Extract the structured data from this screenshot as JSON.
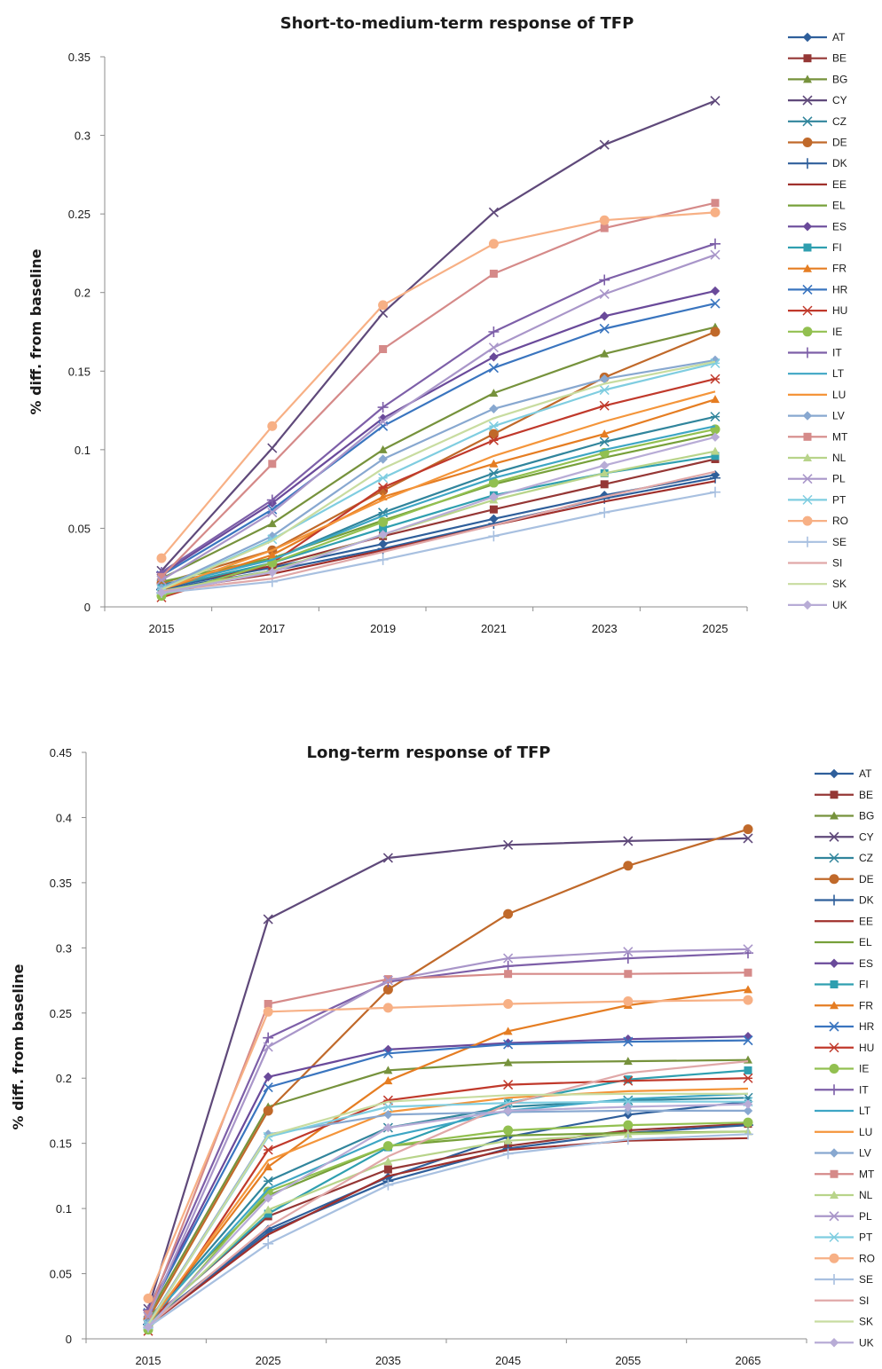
{
  "chart_data": [
    {
      "type": "line",
      "title": "Short-to-medium-term response of TFP",
      "xlabel": "",
      "ylabel": "% diff. from baseline",
      "x": [
        "2015",
        "2017",
        "2019",
        "2021",
        "2023",
        "2025"
      ],
      "ylim": [
        0,
        0.35
      ],
      "yticks": [
        "0",
        "0.05",
        "0.1",
        "0.15",
        "0.2",
        "0.25",
        "0.3",
        "0.35"
      ],
      "grid": false,
      "legend_position": "right",
      "series": [
        {
          "name": "AT",
          "color": "#2f5f9b",
          "marker": "diamond",
          "values": [
            0.012,
            0.025,
            0.04,
            0.056,
            0.071,
            0.084
          ]
        },
        {
          "name": "BE",
          "color": "#953735",
          "marker": "square",
          "values": [
            0.013,
            0.026,
            0.045,
            0.062,
            0.078,
            0.094
          ]
        },
        {
          "name": "BG",
          "color": "#76923c",
          "marker": "triangle",
          "values": [
            0.018,
            0.053,
            0.1,
            0.136,
            0.161,
            0.178
          ]
        },
        {
          "name": "CY",
          "color": "#5f497a",
          "marker": "x",
          "values": [
            0.023,
            0.101,
            0.187,
            0.251,
            0.294,
            0.322
          ]
        },
        {
          "name": "CZ",
          "color": "#31859c",
          "marker": "star",
          "values": [
            0.014,
            0.03,
            0.06,
            0.085,
            0.105,
            0.121
          ]
        },
        {
          "name": "DE",
          "color": "#c0692a",
          "marker": "circle",
          "values": [
            0.015,
            0.036,
            0.074,
            0.11,
            0.146,
            0.175
          ]
        },
        {
          "name": "DK",
          "color": "#2f5f9b",
          "marker": "plus",
          "values": [
            0.011,
            0.023,
            0.037,
            0.053,
            0.069,
            0.082
          ]
        },
        {
          "name": "EE",
          "color": "#a0302c",
          "marker": "none",
          "values": [
            0.01,
            0.021,
            0.036,
            0.052,
            0.067,
            0.08
          ]
        },
        {
          "name": "EL",
          "color": "#77a03a",
          "marker": "none",
          "values": [
            0.016,
            0.031,
            0.055,
            0.078,
            0.095,
            0.11
          ]
        },
        {
          "name": "ES",
          "color": "#6a4a9a",
          "marker": "diamond",
          "values": [
            0.021,
            0.066,
            0.12,
            0.159,
            0.185,
            0.201
          ]
        },
        {
          "name": "FI",
          "color": "#2f9fb0",
          "marker": "square",
          "values": [
            0.012,
            0.028,
            0.05,
            0.071,
            0.085,
            0.096
          ]
        },
        {
          "name": "FR",
          "color": "#e57d22",
          "marker": "triangle",
          "values": [
            0.011,
            0.033,
            0.07,
            0.091,
            0.11,
            0.132
          ]
        },
        {
          "name": "HR",
          "color": "#3a75bf",
          "marker": "x",
          "values": [
            0.02,
            0.062,
            0.115,
            0.152,
            0.177,
            0.193
          ]
        },
        {
          "name": "HU",
          "color": "#c0392b",
          "marker": "star",
          "values": [
            0.006,
            0.028,
            0.076,
            0.106,
            0.128,
            0.145
          ]
        },
        {
          "name": "IE",
          "color": "#92c050",
          "marker": "circle",
          "values": [
            0.007,
            0.028,
            0.054,
            0.079,
            0.098,
            0.113
          ]
        },
        {
          "name": "IT",
          "color": "#7d5fa8",
          "marker": "plus",
          "values": [
            0.022,
            0.068,
            0.127,
            0.175,
            0.208,
            0.231
          ]
        },
        {
          "name": "LT",
          "color": "#3ea6c4",
          "marker": "none",
          "values": [
            0.013,
            0.03,
            0.058,
            0.082,
            0.1,
            0.115
          ]
        },
        {
          "name": "LU",
          "color": "#f4953a",
          "marker": "none",
          "values": [
            0.011,
            0.036,
            0.068,
            0.096,
            0.118,
            0.137
          ]
        },
        {
          "name": "LV",
          "color": "#88a8d0",
          "marker": "diamond",
          "values": [
            0.012,
            0.045,
            0.094,
            0.126,
            0.145,
            0.157
          ]
        },
        {
          "name": "MT",
          "color": "#d58a89",
          "marker": "square",
          "values": [
            0.019,
            0.091,
            0.164,
            0.212,
            0.241,
            0.257
          ]
        },
        {
          "name": "NL",
          "color": "#b8d48a",
          "marker": "triangle",
          "values": [
            0.01,
            0.023,
            0.046,
            0.068,
            0.085,
            0.099
          ]
        },
        {
          "name": "PL",
          "color": "#a996c9",
          "marker": "x",
          "values": [
            0.017,
            0.06,
            0.118,
            0.165,
            0.199,
            0.224
          ]
        },
        {
          "name": "PT",
          "color": "#7fcde0",
          "marker": "star",
          "values": [
            0.011,
            0.043,
            0.082,
            0.115,
            0.138,
            0.155
          ]
        },
        {
          "name": "RO",
          "color": "#f7b085",
          "marker": "circle",
          "values": [
            0.031,
            0.115,
            0.192,
            0.231,
            0.246,
            0.251
          ]
        },
        {
          "name": "SE",
          "color": "#a8c0e0",
          "marker": "plus",
          "values": [
            0.009,
            0.016,
            0.03,
            0.045,
            0.06,
            0.073
          ]
        },
        {
          "name": "SI",
          "color": "#e0a8a8",
          "marker": "none",
          "values": [
            0.01,
            0.018,
            0.035,
            0.052,
            0.07,
            0.086
          ]
        },
        {
          "name": "SK",
          "color": "#c8dca0",
          "marker": "none",
          "values": [
            0.011,
            0.042,
            0.088,
            0.12,
            0.142,
            0.156
          ]
        },
        {
          "name": "UK",
          "color": "#b8acd6",
          "marker": "diamond",
          "values": [
            0.009,
            0.022,
            0.046,
            0.07,
            0.09,
            0.108
          ]
        }
      ]
    },
    {
      "type": "line",
      "title": "Long-term response of TFP",
      "xlabel": "",
      "ylabel": "% diff. from baseline",
      "x": [
        "2015",
        "2025",
        "2035",
        "2045",
        "2055",
        "2065"
      ],
      "ylim": [
        0,
        0.45
      ],
      "yticks": [
        "0",
        "0.05",
        "0.1",
        "0.15",
        "0.2",
        "0.25",
        "0.3",
        "0.35",
        "0.4",
        "0.45"
      ],
      "grid": false,
      "legend_position": "right",
      "series": [
        {
          "name": "AT",
          "color": "#2f5f9b",
          "marker": "diamond",
          "values": [
            0.012,
            0.084,
            0.124,
            0.155,
            0.172,
            0.182
          ]
        },
        {
          "name": "BE",
          "color": "#953735",
          "marker": "square",
          "values": [
            0.013,
            0.094,
            0.13,
            0.148,
            0.16,
            0.165
          ]
        },
        {
          "name": "BG",
          "color": "#76923c",
          "marker": "triangle",
          "values": [
            0.018,
            0.178,
            0.206,
            0.212,
            0.213,
            0.214
          ]
        },
        {
          "name": "CY",
          "color": "#5f497a",
          "marker": "x",
          "values": [
            0.023,
            0.322,
            0.369,
            0.379,
            0.382,
            0.384
          ]
        },
        {
          "name": "CZ",
          "color": "#31859c",
          "marker": "star",
          "values": [
            0.014,
            0.121,
            0.162,
            0.178,
            0.183,
            0.185
          ]
        },
        {
          "name": "DE",
          "color": "#c0692a",
          "marker": "circle",
          "values": [
            0.015,
            0.175,
            0.268,
            0.326,
            0.363,
            0.391
          ]
        },
        {
          "name": "DK",
          "color": "#2f5f9b",
          "marker": "plus",
          "values": [
            0.011,
            0.082,
            0.121,
            0.146,
            0.158,
            0.164
          ]
        },
        {
          "name": "EE",
          "color": "#a0302c",
          "marker": "none",
          "values": [
            0.01,
            0.08,
            0.125,
            0.145,
            0.152,
            0.154
          ]
        },
        {
          "name": "EL",
          "color": "#77a03a",
          "marker": "none",
          "values": [
            0.016,
            0.11,
            0.148,
            0.156,
            0.158,
            0.159
          ]
        },
        {
          "name": "ES",
          "color": "#6a4a9a",
          "marker": "diamond",
          "values": [
            0.021,
            0.201,
            0.222,
            0.227,
            0.23,
            0.232
          ]
        },
        {
          "name": "FI",
          "color": "#2f9fb0",
          "marker": "square",
          "values": [
            0.012,
            0.096,
            0.147,
            0.181,
            0.199,
            0.206
          ]
        },
        {
          "name": "FR",
          "color": "#e57d22",
          "marker": "triangle",
          "values": [
            0.011,
            0.132,
            0.198,
            0.236,
            0.256,
            0.268
          ]
        },
        {
          "name": "HR",
          "color": "#3a75bf",
          "marker": "x",
          "values": [
            0.02,
            0.193,
            0.219,
            0.226,
            0.228,
            0.229
          ]
        },
        {
          "name": "HU",
          "color": "#c0392b",
          "marker": "star",
          "values": [
            0.006,
            0.145,
            0.183,
            0.195,
            0.198,
            0.2
          ]
        },
        {
          "name": "IE",
          "color": "#92c050",
          "marker": "circle",
          "values": [
            0.007,
            0.113,
            0.148,
            0.16,
            0.164,
            0.166
          ]
        },
        {
          "name": "IT",
          "color": "#7d5fa8",
          "marker": "plus",
          "values": [
            0.022,
            0.231,
            0.274,
            0.286,
            0.292,
            0.296
          ]
        },
        {
          "name": "LT",
          "color": "#3ea6c4",
          "marker": "none",
          "values": [
            0.013,
            0.115,
            0.155,
            0.175,
            0.184,
            0.188
          ]
        },
        {
          "name": "LU",
          "color": "#f4953a",
          "marker": "none",
          "values": [
            0.011,
            0.137,
            0.174,
            0.185,
            0.19,
            0.192
          ]
        },
        {
          "name": "LV",
          "color": "#88a8d0",
          "marker": "diamond",
          "values": [
            0.012,
            0.157,
            0.172,
            0.174,
            0.175,
            0.175
          ]
        },
        {
          "name": "MT",
          "color": "#d58a89",
          "marker": "square",
          "values": [
            0.019,
            0.257,
            0.276,
            0.28,
            0.28,
            0.281
          ]
        },
        {
          "name": "NL",
          "color": "#b8d48a",
          "marker": "triangle",
          "values": [
            0.01,
            0.099,
            0.136,
            0.152,
            0.157,
            0.159
          ]
        },
        {
          "name": "PL",
          "color": "#a996c9",
          "marker": "x",
          "values": [
            0.017,
            0.224,
            0.275,
            0.292,
            0.297,
            0.299
          ]
        },
        {
          "name": "PT",
          "color": "#7fcde0",
          "marker": "star",
          "values": [
            0.011,
            0.155,
            0.178,
            0.181,
            0.182,
            0.182
          ]
        },
        {
          "name": "RO",
          "color": "#f7b085",
          "marker": "circle",
          "values": [
            0.031,
            0.251,
            0.254,
            0.257,
            0.259,
            0.26
          ]
        },
        {
          "name": "SE",
          "color": "#a8c0e0",
          "marker": "plus",
          "values": [
            0.009,
            0.073,
            0.118,
            0.142,
            0.153,
            0.157
          ]
        },
        {
          "name": "SI",
          "color": "#e0a8a8",
          "marker": "none",
          "values": [
            0.01,
            0.086,
            0.14,
            0.18,
            0.204,
            0.213
          ]
        },
        {
          "name": "SK",
          "color": "#c8dca0",
          "marker": "none",
          "values": [
            0.011,
            0.156,
            0.182,
            0.187,
            0.188,
            0.188
          ]
        },
        {
          "name": "UK",
          "color": "#b8acd6",
          "marker": "diamond",
          "values": [
            0.009,
            0.108,
            0.162,
            0.175,
            0.178,
            0.18
          ]
        }
      ]
    }
  ]
}
